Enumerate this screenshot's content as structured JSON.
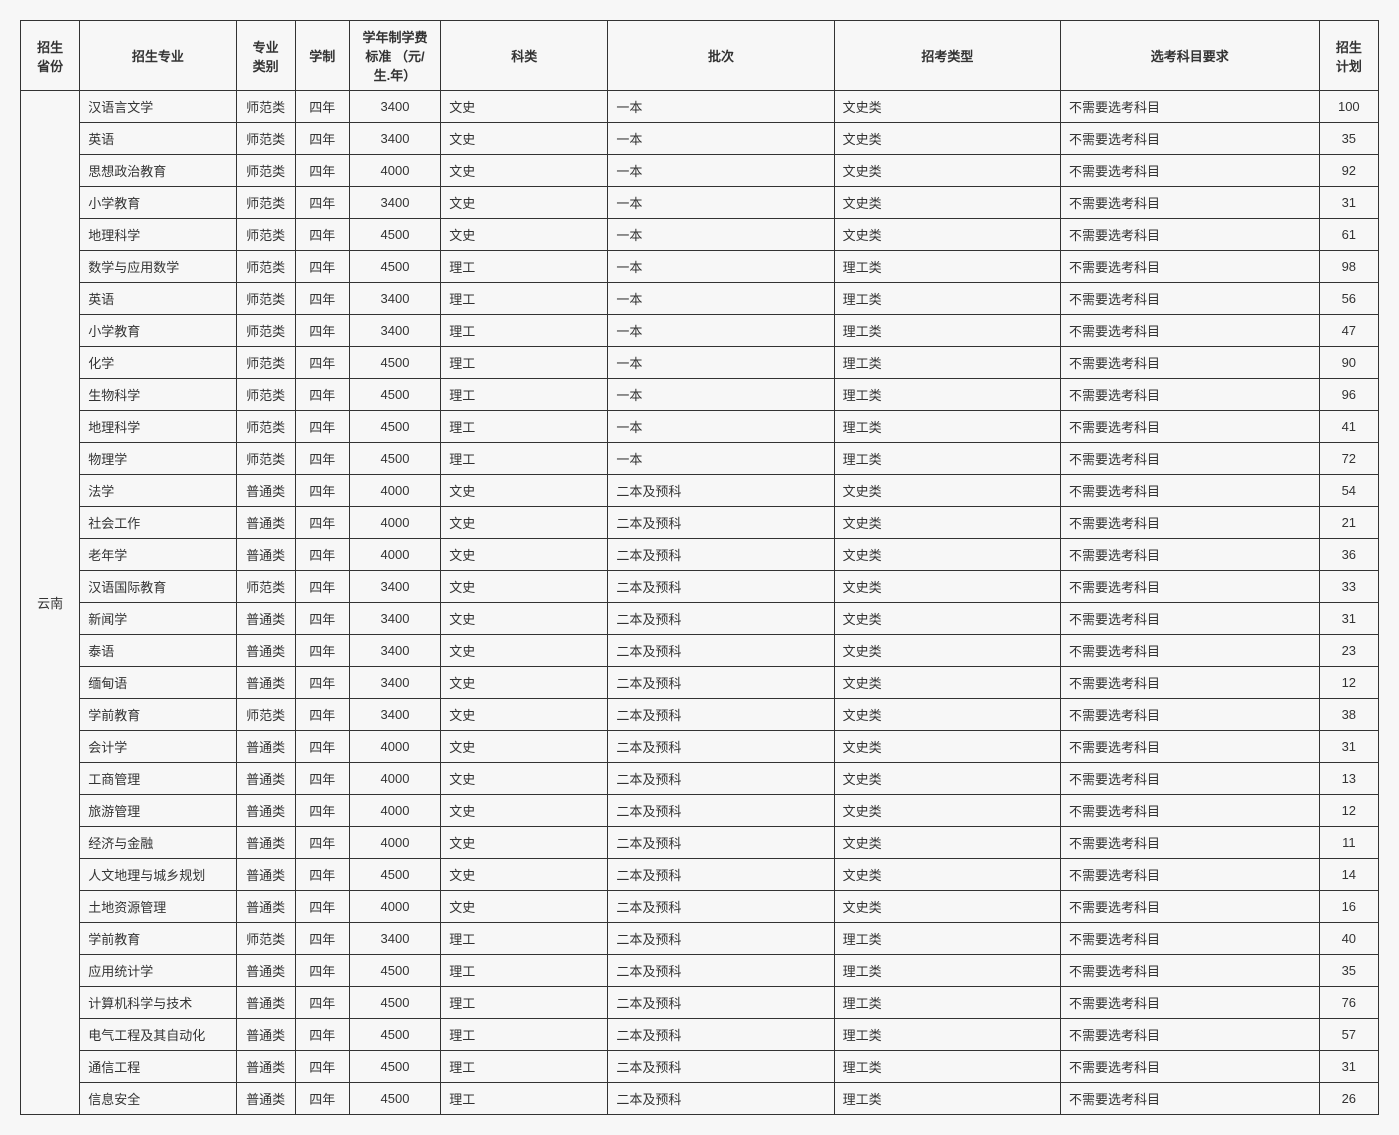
{
  "columns": [
    "招生\n省份",
    "招生专业",
    "专业\n类别",
    "学制",
    "学年制学费\n标准\n（元/生.年）",
    "科类",
    "批次",
    "招考类型",
    "选考科目要求",
    "招生\n计划"
  ],
  "province": "云南",
  "rows": [
    [
      "汉语言文学",
      "师范类",
      "四年",
      "3400",
      "文史",
      "一本",
      "文史类",
      "不需要选考科目",
      "100"
    ],
    [
      "英语",
      "师范类",
      "四年",
      "3400",
      "文史",
      "一本",
      "文史类",
      "不需要选考科目",
      "35"
    ],
    [
      "思想政治教育",
      "师范类",
      "四年",
      "4000",
      "文史",
      "一本",
      "文史类",
      "不需要选考科目",
      "92"
    ],
    [
      "小学教育",
      "师范类",
      "四年",
      "3400",
      "文史",
      "一本",
      "文史类",
      "不需要选考科目",
      "31"
    ],
    [
      "地理科学",
      "师范类",
      "四年",
      "4500",
      "文史",
      "一本",
      "文史类",
      "不需要选考科目",
      "61"
    ],
    [
      "数学与应用数学",
      "师范类",
      "四年",
      "4500",
      "理工",
      "一本",
      "理工类",
      "不需要选考科目",
      "98"
    ],
    [
      "英语",
      "师范类",
      "四年",
      "3400",
      "理工",
      "一本",
      "理工类",
      "不需要选考科目",
      "56"
    ],
    [
      "小学教育",
      "师范类",
      "四年",
      "3400",
      "理工",
      "一本",
      "理工类",
      "不需要选考科目",
      "47"
    ],
    [
      "化学",
      "师范类",
      "四年",
      "4500",
      "理工",
      "一本",
      "理工类",
      "不需要选考科目",
      "90"
    ],
    [
      "生物科学",
      "师范类",
      "四年",
      "4500",
      "理工",
      "一本",
      "理工类",
      "不需要选考科目",
      "96"
    ],
    [
      "地理科学",
      "师范类",
      "四年",
      "4500",
      "理工",
      "一本",
      "理工类",
      "不需要选考科目",
      "41"
    ],
    [
      "物理学",
      "师范类",
      "四年",
      "4500",
      "理工",
      "一本",
      "理工类",
      "不需要选考科目",
      "72"
    ],
    [
      "法学",
      "普通类",
      "四年",
      "4000",
      "文史",
      "二本及预科",
      "文史类",
      "不需要选考科目",
      "54"
    ],
    [
      "社会工作",
      "普通类",
      "四年",
      "4000",
      "文史",
      "二本及预科",
      "文史类",
      "不需要选考科目",
      "21"
    ],
    [
      "老年学",
      "普通类",
      "四年",
      "4000",
      "文史",
      "二本及预科",
      "文史类",
      "不需要选考科目",
      "36"
    ],
    [
      "汉语国际教育",
      "师范类",
      "四年",
      "3400",
      "文史",
      "二本及预科",
      "文史类",
      "不需要选考科目",
      "33"
    ],
    [
      "新闻学",
      "普通类",
      "四年",
      "3400",
      "文史",
      "二本及预科",
      "文史类",
      "不需要选考科目",
      "31"
    ],
    [
      "泰语",
      "普通类",
      "四年",
      "3400",
      "文史",
      "二本及预科",
      "文史类",
      "不需要选考科目",
      "23"
    ],
    [
      "缅甸语",
      "普通类",
      "四年",
      "3400",
      "文史",
      "二本及预科",
      "文史类",
      "不需要选考科目",
      "12"
    ],
    [
      "学前教育",
      "师范类",
      "四年",
      "3400",
      "文史",
      "二本及预科",
      "文史类",
      "不需要选考科目",
      "38"
    ],
    [
      "会计学",
      "普通类",
      "四年",
      "4000",
      "文史",
      "二本及预科",
      "文史类",
      "不需要选考科目",
      "31"
    ],
    [
      "工商管理",
      "普通类",
      "四年",
      "4000",
      "文史",
      "二本及预科",
      "文史类",
      "不需要选考科目",
      "13"
    ],
    [
      "旅游管理",
      "普通类",
      "四年",
      "4000",
      "文史",
      "二本及预科",
      "文史类",
      "不需要选考科目",
      "12"
    ],
    [
      "经济与金融",
      "普通类",
      "四年",
      "4000",
      "文史",
      "二本及预科",
      "文史类",
      "不需要选考科目",
      "11"
    ],
    [
      "人文地理与城乡规划",
      "普通类",
      "四年",
      "4500",
      "文史",
      "二本及预科",
      "文史类",
      "不需要选考科目",
      "14"
    ],
    [
      "土地资源管理",
      "普通类",
      "四年",
      "4000",
      "文史",
      "二本及预科",
      "文史类",
      "不需要选考科目",
      "16"
    ],
    [
      "学前教育",
      "师范类",
      "四年",
      "3400",
      "理工",
      "二本及预科",
      "理工类",
      "不需要选考科目",
      "40"
    ],
    [
      "应用统计学",
      "普通类",
      "四年",
      "4500",
      "理工",
      "二本及预科",
      "理工类",
      "不需要选考科目",
      "35"
    ],
    [
      "计算机科学与技术",
      "普通类",
      "四年",
      "4500",
      "理工",
      "二本及预科",
      "理工类",
      "不需要选考科目",
      "76"
    ],
    [
      "电气工程及其自动化",
      "普通类",
      "四年",
      "4500",
      "理工",
      "二本及预科",
      "理工类",
      "不需要选考科目",
      "57"
    ],
    [
      "通信工程",
      "普通类",
      "四年",
      "4500",
      "理工",
      "二本及预科",
      "理工类",
      "不需要选考科目",
      "31"
    ],
    [
      "信息安全",
      "普通类",
      "四年",
      "4500",
      "理工",
      "二本及预科",
      "理工类",
      "不需要选考科目",
      "26"
    ]
  ]
}
